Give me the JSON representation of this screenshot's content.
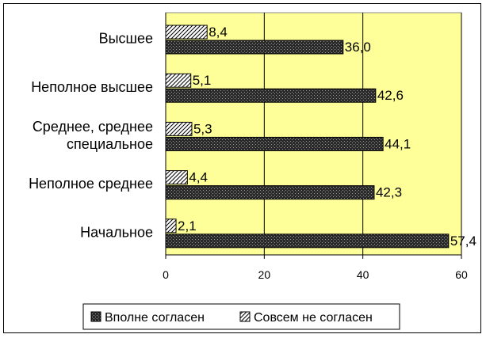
{
  "chart_data": {
    "type": "bar",
    "orientation": "horizontal",
    "categories": [
      "Высшее",
      "Неполное высшее",
      "Среднее, среднее специальное",
      "Неполное среднее",
      "Начальное"
    ],
    "category_lines": [
      [
        "Высшее"
      ],
      [
        "Неполное высшее"
      ],
      [
        "Среднее, среднее",
        "специальное"
      ],
      [
        "Неполное среднее"
      ],
      [
        "Начальное"
      ]
    ],
    "series": [
      {
        "name": "Вполне согласен",
        "values": [
          36.0,
          42.6,
          44.1,
          42.3,
          57.4
        ],
        "labels": [
          "36,0",
          "42,6",
          "44,1",
          "42,3",
          "57,4"
        ],
        "pattern": "dense-dark"
      },
      {
        "name": "Совсем не согласен",
        "values": [
          8.4,
          5.1,
          5.3,
          4.4,
          2.1
        ],
        "labels": [
          "8,4",
          "5,1",
          "5,3",
          "4,4",
          "2,1"
        ],
        "pattern": "diagonal-light"
      }
    ],
    "xlim": [
      0,
      60
    ],
    "xticks": [
      "0",
      "20",
      "40",
      "60"
    ],
    "xtick_values": [
      0,
      20,
      40,
      60
    ],
    "grid": true,
    "plot_background": "#ffff99",
    "legend": {
      "placement": "bottom"
    }
  }
}
